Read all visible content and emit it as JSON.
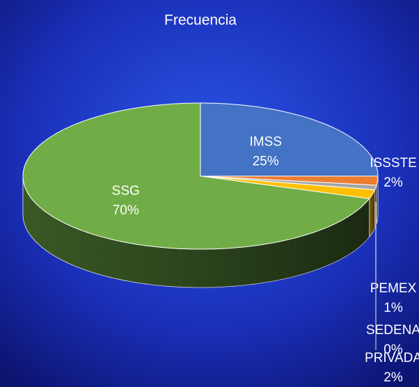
{
  "chart_data": {
    "type": "pie",
    "title": "Frecuencia",
    "categories": [
      "IMSS",
      "ISSSTE",
      "PEMEX",
      "SEDENA",
      "PRIVADA",
      "SSG"
    ],
    "values": [
      25,
      2,
      1,
      0,
      2,
      70
    ],
    "value_labels": [
      "25%",
      "2%",
      "1%",
      "0%",
      "2%",
      "70%"
    ],
    "colors": [
      "#4472c4",
      "#ed7d31",
      "#a5a5a5",
      "#5b9bd5",
      "#ffc000",
      "#70ad47"
    ]
  }
}
